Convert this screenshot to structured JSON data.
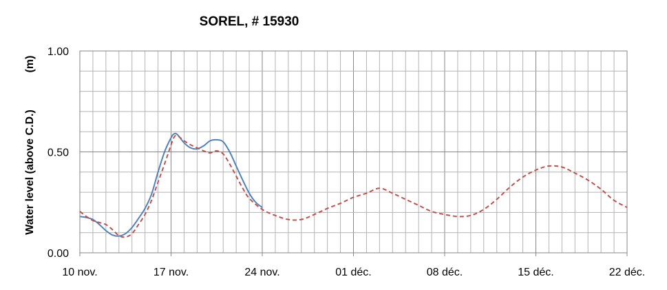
{
  "chart_data": {
    "type": "line",
    "title": "SOREL, # 15930",
    "xlabel": "",
    "ylabel": "Water level (above C.D.)",
    "ylabel_unit": "(m)",
    "x_start_date": "2013-11-10",
    "xlim": [
      "10 nov.",
      "22 déc."
    ],
    "ylim": [
      0.0,
      1.0
    ],
    "x_ticks": [
      "10 nov.",
      "17 nov.",
      "24 nov.",
      "01 déc.",
      "08 déc.",
      "15 déc.",
      "22 déc."
    ],
    "y_ticks": [
      "0.00",
      "0.50",
      "1.00"
    ],
    "grid": true,
    "legend": "none",
    "series": [
      {
        "style": "solid",
        "color": "#4f81bd",
        "points": [
          [
            "10 nov.",
            0.18
          ],
          [
            "10 nov. 12h",
            0.175
          ],
          [
            "11 nov.",
            0.165
          ],
          [
            "11 nov. 12h",
            0.14
          ],
          [
            "12 nov.",
            0.11
          ],
          [
            "12 nov. 12h",
            0.088
          ],
          [
            "13 nov.",
            0.083
          ],
          [
            "13 nov. 12h",
            0.095
          ],
          [
            "14 nov.",
            0.125
          ],
          [
            "14 nov. 12h",
            0.17
          ],
          [
            "15 nov.",
            0.22
          ],
          [
            "15 nov. 12h",
            0.29
          ],
          [
            "16 nov.",
            0.4
          ],
          [
            "16 nov. 12h",
            0.5
          ],
          [
            "17 nov.",
            0.57
          ],
          [
            "17 nov. 6h",
            0.59
          ],
          [
            "17 nov. 12h",
            0.585
          ],
          [
            "18 nov.",
            0.545
          ],
          [
            "18 nov. 12h",
            0.52
          ],
          [
            "19 nov.",
            0.515
          ],
          [
            "19 nov. 12h",
            0.53
          ],
          [
            "20 nov.",
            0.555
          ],
          [
            "20 nov. 12h",
            0.56
          ],
          [
            "21 nov.",
            0.55
          ],
          [
            "21 nov. 12h",
            0.5
          ],
          [
            "22 nov.",
            0.43
          ],
          [
            "22 nov. 12h",
            0.36
          ],
          [
            "23 nov.",
            0.295
          ],
          [
            "23 nov. 12h",
            0.25
          ],
          [
            "24 nov.",
            0.225
          ]
        ]
      },
      {
        "style": "dashed",
        "color": "#c0504d",
        "points": [
          [
            "10 nov.",
            0.205
          ],
          [
            "10 nov. 12h",
            0.18
          ],
          [
            "11 nov.",
            0.16
          ],
          [
            "11 nov. 12h",
            0.15
          ],
          [
            "12 nov.",
            0.14
          ],
          [
            "12 nov. 12h",
            0.115
          ],
          [
            "13 nov.",
            0.085
          ],
          [
            "13 nov. 12h",
            0.078
          ],
          [
            "14 nov.",
            0.095
          ],
          [
            "14 nov. 12h",
            0.14
          ],
          [
            "15 nov.",
            0.19
          ],
          [
            "15 nov. 12h",
            0.26
          ],
          [
            "16 nov.",
            0.35
          ],
          [
            "16 nov. 12h",
            0.44
          ],
          [
            "17 nov.",
            0.535
          ],
          [
            "17 nov. 6h",
            0.575
          ],
          [
            "17 nov. 12h",
            0.58
          ],
          [
            "18 nov.",
            0.555
          ],
          [
            "18 nov. 12h",
            0.535
          ],
          [
            "19 nov.",
            0.52
          ],
          [
            "19 nov. 12h",
            0.505
          ],
          [
            "20 nov.",
            0.495
          ],
          [
            "20 nov. 12h",
            0.505
          ],
          [
            "21 nov.",
            0.49
          ],
          [
            "21 nov. 12h",
            0.44
          ],
          [
            "22 nov.",
            0.38
          ],
          [
            "22 nov. 12h",
            0.32
          ],
          [
            "23 nov.",
            0.27
          ],
          [
            "24 nov.",
            0.215
          ],
          [
            "25 nov.",
            0.185
          ],
          [
            "26 nov.",
            0.165
          ],
          [
            "27 nov.",
            0.165
          ],
          [
            "28 nov.",
            0.19
          ],
          [
            "29 nov.",
            0.22
          ],
          [
            "30 nov.",
            0.245
          ],
          [
            "01 déc.",
            0.275
          ],
          [
            "02 déc.",
            0.295
          ],
          [
            "03 déc.",
            0.32
          ],
          [
            "04 déc.",
            0.295
          ],
          [
            "05 déc.",
            0.265
          ],
          [
            "06 déc.",
            0.235
          ],
          [
            "07 déc.",
            0.205
          ],
          [
            "08 déc.",
            0.19
          ],
          [
            "09 déc.",
            0.18
          ],
          [
            "10 déc.",
            0.185
          ],
          [
            "11 déc.",
            0.215
          ],
          [
            "12 déc.",
            0.265
          ],
          [
            "13 déc.",
            0.325
          ],
          [
            "14 déc.",
            0.375
          ],
          [
            "15 déc.",
            0.41
          ],
          [
            "16 déc.",
            0.43
          ],
          [
            "17 déc.",
            0.425
          ],
          [
            "18 déc.",
            0.395
          ],
          [
            "19 déc.",
            0.36
          ],
          [
            "20 déc.",
            0.315
          ],
          [
            "21 déc.",
            0.26
          ],
          [
            "22 déc.",
            0.225
          ]
        ]
      }
    ]
  }
}
